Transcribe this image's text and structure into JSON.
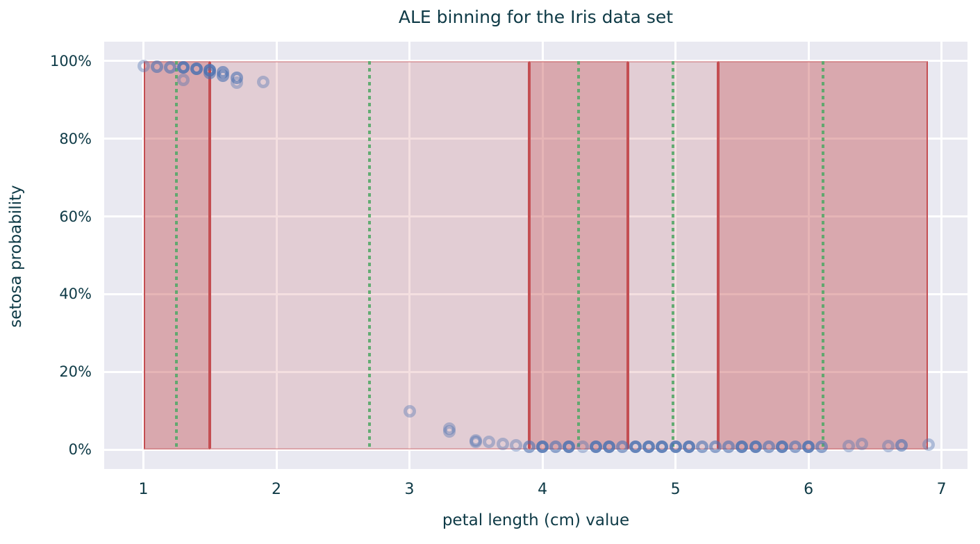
{
  "chart_data": {
    "type": "scatter",
    "title": "ALE binning for the Iris data set",
    "xlabel": "petal length (cm) value",
    "ylabel": "setosa probability",
    "x_tick_labels": [
      "1",
      "2",
      "3",
      "4",
      "5",
      "6",
      "7"
    ],
    "x_tick_values": [
      1,
      2,
      3,
      4,
      5,
      6,
      7
    ],
    "y_tick_labels": [
      "0%",
      "20%",
      "40%",
      "60%",
      "80%",
      "100%"
    ],
    "y_tick_values_pct": [
      0,
      20,
      40,
      60,
      80,
      100
    ],
    "xlim": [
      0.705,
      7.195
    ],
    "ylim_pct": [
      -5,
      105
    ],
    "grid": true,
    "bins": [
      {
        "start": 1.0,
        "end": 1.5,
        "center": 1.25,
        "shade": "dark"
      },
      {
        "start": 1.5,
        "end": 3.9,
        "center": 2.7,
        "shade": "light"
      },
      {
        "start": 3.9,
        "end": 4.64,
        "center": 4.27,
        "shade": "dark"
      },
      {
        "start": 4.64,
        "end": 5.32,
        "center": 4.98,
        "shade": "light"
      },
      {
        "start": 5.32,
        "end": 6.9,
        "center": 6.11,
        "shade": "dark"
      }
    ],
    "points": [
      [
        1.0,
        98.8,
        1
      ],
      [
        1.1,
        98.6,
        2
      ],
      [
        1.2,
        98.4,
        2
      ],
      [
        1.3,
        98.3,
        3
      ],
      [
        1.3,
        95.2,
        1
      ],
      [
        1.4,
        98.0,
        3
      ],
      [
        1.5,
        97.7,
        3
      ],
      [
        1.5,
        96.9,
        2
      ],
      [
        1.6,
        97.1,
        2
      ],
      [
        1.6,
        96.3,
        2
      ],
      [
        1.7,
        95.7,
        2
      ],
      [
        1.7,
        94.5,
        1
      ],
      [
        1.9,
        94.7,
        1
      ],
      [
        3.0,
        9.8,
        1
      ],
      [
        3.3,
        5.3,
        1
      ],
      [
        3.3,
        4.6,
        1
      ],
      [
        3.5,
        2.3,
        1
      ],
      [
        3.5,
        2.0,
        1
      ],
      [
        3.6,
        2.0,
        1
      ],
      [
        3.7,
        1.4,
        1
      ],
      [
        3.8,
        1.0,
        1
      ],
      [
        3.9,
        0.7,
        2
      ],
      [
        4.0,
        0.7,
        3
      ],
      [
        4.1,
        0.7,
        2
      ],
      [
        4.2,
        0.7,
        3
      ],
      [
        4.3,
        0.7,
        1
      ],
      [
        4.4,
        0.7,
        3
      ],
      [
        4.5,
        0.7,
        3
      ],
      [
        4.6,
        0.7,
        2
      ],
      [
        4.7,
        0.7,
        3
      ],
      [
        4.8,
        0.7,
        3
      ],
      [
        4.9,
        0.7,
        3
      ],
      [
        5.0,
        0.7,
        3
      ],
      [
        5.1,
        0.7,
        3
      ],
      [
        5.2,
        0.7,
        2
      ],
      [
        5.3,
        0.7,
        2
      ],
      [
        5.4,
        0.7,
        2
      ],
      [
        5.5,
        0.7,
        3
      ],
      [
        5.6,
        0.7,
        3
      ],
      [
        5.7,
        0.7,
        2
      ],
      [
        5.8,
        0.7,
        3
      ],
      [
        5.9,
        0.7,
        2
      ],
      [
        6.0,
        0.7,
        3
      ],
      [
        6.1,
        0.7,
        2
      ],
      [
        6.3,
        0.9,
        1
      ],
      [
        6.4,
        1.4,
        1
      ],
      [
        6.6,
        0.9,
        1
      ],
      [
        6.7,
        1.1,
        2
      ],
      [
        6.9,
        1.3,
        1
      ]
    ]
  },
  "colors": {
    "plot_bg": "#e9e9f1",
    "grid": "#ffffff",
    "bin_fill_dark": "rgba(196,78,82,0.42)",
    "bin_fill_light": "rgba(196,78,82,0.18)",
    "bin_edge": "#c44e52",
    "bin_edge_soft": "rgba(196,78,82,0.35)",
    "bin_center_line": "#55a868",
    "point": "#4c72b0",
    "text": "#0e3a46"
  }
}
